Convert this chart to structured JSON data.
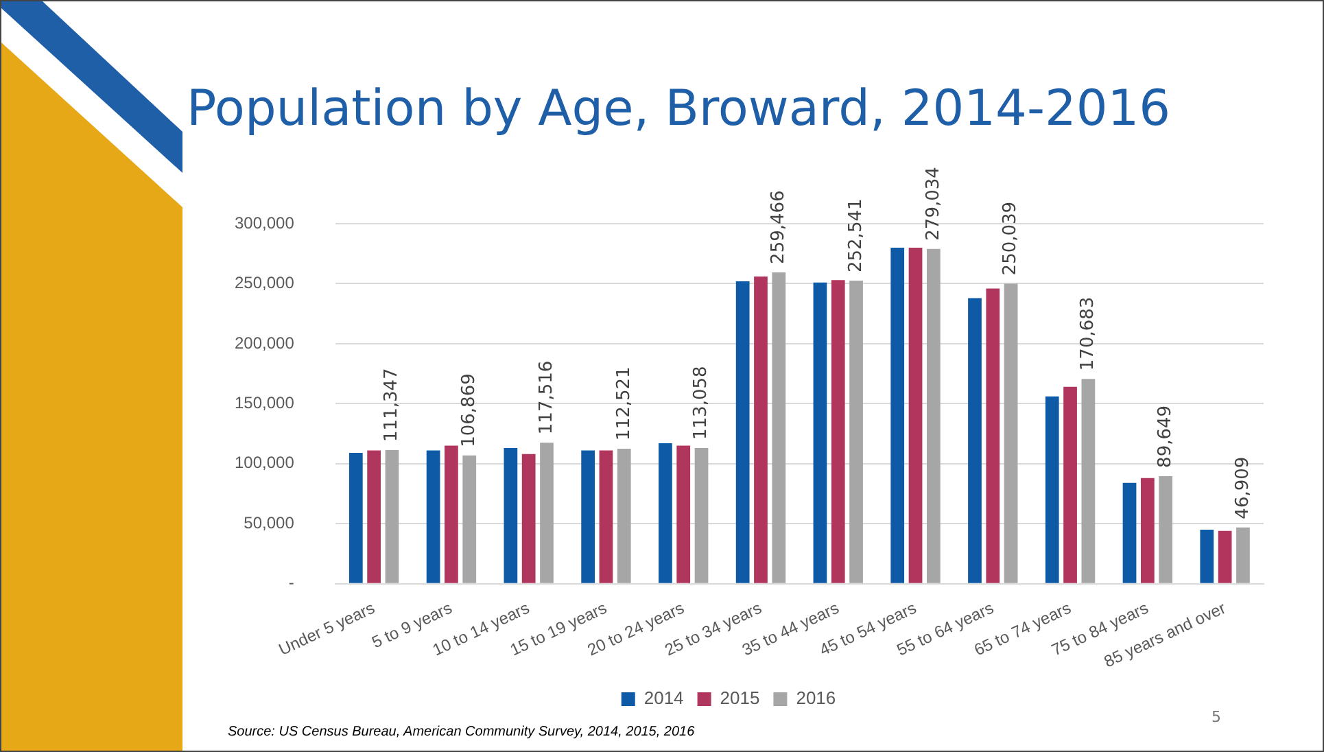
{
  "chart_data": {
    "type": "bar",
    "title": "Population by Age, Broward, 2014-2016",
    "categories": [
      "Under 5 years",
      "5 to 9 years",
      "10 to 14 years",
      "15 to 19 years",
      "20 to 24 years",
      "25 to 34 years",
      "35 to 44 years",
      "45 to 54 years",
      "55 to 64 years",
      "65 to 74 years",
      "75 to 84 years",
      "85 years and over"
    ],
    "series": [
      {
        "name": "2014",
        "color": "#0f5aa6",
        "values": [
          109000,
          111000,
          113000,
          111000,
          117000,
          252000,
          251000,
          280000,
          238000,
          156000,
          84000,
          45000
        ]
      },
      {
        "name": "2015",
        "color": "#b0365e",
        "values": [
          111000,
          115000,
          108000,
          111000,
          115000,
          256000,
          253000,
          280000,
          246000,
          164000,
          88000,
          44000
        ]
      },
      {
        "name": "2016",
        "color": "#a6a6a6",
        "values": [
          111347,
          106869,
          117516,
          112521,
          113058,
          259466,
          252541,
          279034,
          250039,
          170683,
          89649,
          46909
        ],
        "value_labels": [
          "111,347",
          "106,869",
          "117,516",
          "112,521",
          "113,058",
          "259,466",
          "252,541",
          "279,034",
          "250,039",
          "170,683",
          "89,649",
          "46,909"
        ]
      }
    ],
    "ylim": [
      0,
      300000
    ],
    "yticks": [
      {
        "value": 0,
        "label": "-"
      },
      {
        "value": 50000,
        "label": "50,000"
      },
      {
        "value": 100000,
        "label": "100,000"
      },
      {
        "value": 150000,
        "label": "150,000"
      },
      {
        "value": 200000,
        "label": "200,000"
      },
      {
        "value": 250000,
        "label": "250,000"
      },
      {
        "value": 300000,
        "label": "300,000"
      }
    ],
    "grid": "y",
    "legend": "bottom",
    "annotations": [
      "Source: US Census Bureau, American Community Survey, 2014, 2015, 2016",
      "5"
    ]
  }
}
